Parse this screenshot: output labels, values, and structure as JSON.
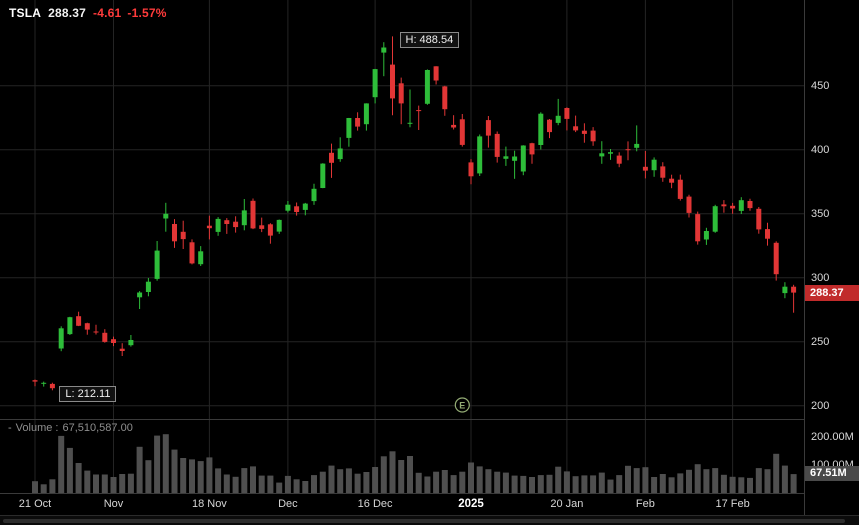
{
  "header": {
    "symbol": "TSLA",
    "price": "288.37",
    "change": "-4.61",
    "change_pct": "-1.57%"
  },
  "volume_header": {
    "toggle": "-",
    "label": "Volume :",
    "value": "67,510,587.00"
  },
  "badges": {
    "price": "288.37",
    "volume": "67.51M"
  },
  "annotations": {
    "high": "H: 488.54",
    "low": "L: 212.11",
    "earnings": "E"
  },
  "colors": {
    "up": "#2ebd3a",
    "down": "#e23636",
    "volume_bar": "#4f4f4f",
    "grid": "#242424",
    "badge_price": "#c12b2b",
    "badge_volume": "#4a4a4a",
    "earnings": "#93ab74",
    "change_text": "#ff3b3b"
  },
  "chart_data": {
    "type": "candlestick",
    "symbol": "TSLA",
    "ylim": [
      200,
      517
    ],
    "grid_prices": [
      450,
      400,
      350,
      300,
      250,
      200
    ],
    "volume_ticks": [
      {
        "label": "200.00M",
        "value": 200
      },
      {
        "label": "100.00M",
        "value": 100
      }
    ],
    "x_ticks": [
      {
        "label": "21 Oct",
        "index": 0
      },
      {
        "label": "Nov",
        "index": 9
      },
      {
        "label": "18 Nov",
        "index": 20
      },
      {
        "label": "Dec",
        "index": 29
      },
      {
        "label": "16 Dec",
        "index": 39
      },
      {
        "label": "2025",
        "index": 50,
        "emphasis": true
      },
      {
        "label": "20 Jan",
        "index": 61
      },
      {
        "label": "Feb",
        "index": 70
      },
      {
        "label": "17 Feb",
        "index": 80
      }
    ],
    "high_point": {
      "index": 41,
      "value": 488.54
    },
    "low_point": {
      "index": 2,
      "value": 212.11
    },
    "earnings_index": 49,
    "last_price": 288.37,
    "last_volume_m": 67.51,
    "candles": [
      [
        "21 Oct",
        220.0,
        220.5,
        215.3,
        218.9,
        42
      ],
      [
        "22 Oct",
        217.4,
        218.9,
        215.0,
        217.9,
        31
      ],
      [
        "23 Oct",
        217.1,
        218.0,
        212.11,
        213.7,
        49
      ],
      [
        "24 Oct",
        244.7,
        262.1,
        242.6,
        260.5,
        204
      ],
      [
        "25 Oct",
        256.0,
        269.5,
        255.3,
        269.2,
        161
      ],
      [
        "28 Oct",
        270.0,
        273.5,
        262.2,
        262.5,
        107
      ],
      [
        "29 Oct",
        264.5,
        264.9,
        255.5,
        259.5,
        80
      ],
      [
        "30 Oct",
        258.0,
        263.3,
        255.7,
        257.6,
        66
      ],
      [
        "31 Oct",
        257.0,
        259.8,
        249.3,
        249.9,
        66
      ],
      [
        "1 Nov",
        252.0,
        254.0,
        246.6,
        249.0,
        57
      ],
      [
        "4 Nov",
        244.6,
        248.9,
        238.9,
        242.8,
        68
      ],
      [
        "5 Nov",
        247.3,
        255.3,
        246.2,
        251.4,
        69
      ],
      [
        "6 Nov",
        284.7,
        289.6,
        275.6,
        288.5,
        165
      ],
      [
        "7 Nov",
        288.9,
        299.8,
        285.5,
        296.9,
        117
      ],
      [
        "8 Nov",
        299.1,
        328.7,
        297.7,
        321.2,
        205
      ],
      [
        "11 Nov",
        346.3,
        358.6,
        336.0,
        350.0,
        210
      ],
      [
        "12 Nov",
        342.0,
        345.8,
        323.3,
        328.5,
        155
      ],
      [
        "13 Nov",
        335.9,
        344.6,
        322.5,
        330.2,
        125
      ],
      [
        "14 Nov",
        327.7,
        330.0,
        310.4,
        311.2,
        120
      ],
      [
        "15 Nov",
        310.6,
        324.7,
        309.2,
        320.7,
        114
      ],
      [
        "18 Nov",
        340.7,
        348.5,
        330.0,
        338.7,
        127
      ],
      [
        "19 Nov",
        335.8,
        347.4,
        332.8,
        346.0,
        88
      ],
      [
        "20 Nov",
        345.0,
        346.6,
        334.3,
        342.0,
        66
      ],
      [
        "21 Nov",
        343.8,
        348.0,
        335.3,
        339.6,
        58
      ],
      [
        "22 Nov",
        341.1,
        361.5,
        337.1,
        352.6,
        89
      ],
      [
        "25 Nov",
        360.1,
        361.9,
        338.0,
        338.6,
        95
      ],
      [
        "26 Nov",
        341.0,
        347.0,
        335.7,
        338.2,
        62
      ],
      [
        "27 Nov",
        341.8,
        342.6,
        326.6,
        332.9,
        62
      ],
      [
        "29 Nov",
        336.1,
        345.5,
        334.3,
        345.2,
        37
      ],
      [
        "2 Dec",
        352.4,
        360.0,
        351.0,
        357.1,
        61
      ],
      [
        "3 Dec",
        355.8,
        358.8,
        348.6,
        351.4,
        49
      ],
      [
        "4 Dec",
        353.0,
        358.5,
        348.8,
        357.9,
        43
      ],
      [
        "5 Dec",
        359.9,
        373.4,
        356.9,
        369.5,
        64
      ],
      [
        "6 Dec",
        370.1,
        389.5,
        370.0,
        389.2,
        76
      ],
      [
        "9 Dec",
        397.6,
        404.8,
        378.0,
        389.8,
        98
      ],
      [
        "10 Dec",
        392.7,
        409.7,
        390.6,
        401.0,
        85
      ],
      [
        "11 Dec",
        409.3,
        424.9,
        402.4,
        424.8,
        88
      ],
      [
        "12 Dec",
        424.8,
        429.3,
        415.0,
        418.1,
        69
      ],
      [
        "13 Dec",
        420.0,
        436.3,
        415.0,
        436.2,
        75
      ],
      [
        "16 Dec",
        441.1,
        463.2,
        436.2,
        463.0,
        93
      ],
      [
        "17 Dec",
        475.9,
        484.0,
        457.5,
        479.9,
        131
      ],
      [
        "18 Dec",
        466.5,
        488.54,
        427.0,
        440.1,
        149
      ],
      [
        "19 Dec",
        451.9,
        456.4,
        420.0,
        436.2,
        118
      ],
      [
        "20 Dec",
        420.4,
        447.1,
        417.6,
        421.1,
        132
      ],
      [
        "23 Dec",
        431.0,
        434.5,
        415.4,
        430.6,
        72
      ],
      [
        "24 Dec",
        435.9,
        462.8,
        435.1,
        462.3,
        59
      ],
      [
        "26 Dec",
        465.2,
        465.3,
        451.0,
        454.1,
        76
      ],
      [
        "27 Dec",
        449.5,
        450.0,
        426.5,
        431.7,
        82
      ],
      [
        "30 Dec",
        419.4,
        427.0,
        415.8,
        417.4,
        64
      ],
      [
        "31 Dec",
        423.8,
        427.9,
        402.5,
        403.8,
        76
      ],
      [
        "2 Jan",
        390.1,
        392.7,
        373.0,
        379.3,
        109
      ],
      [
        "3 Jan",
        381.5,
        411.9,
        379.5,
        410.4,
        95
      ],
      [
        "6 Jan",
        423.2,
        426.4,
        401.7,
        411.1,
        85
      ],
      [
        "7 Jan",
        412.4,
        414.3,
        390.0,
        394.4,
        76
      ],
      [
        "8 Jan",
        392.9,
        402.5,
        387.4,
        394.9,
        73
      ],
      [
        "10 Jan",
        391.4,
        399.3,
        377.3,
        394.7,
        62
      ],
      [
        "13 Jan",
        383.0,
        403.6,
        380.1,
        403.3,
        61
      ],
      [
        "14 Jan",
        405.1,
        405.5,
        389.0,
        396.4,
        57
      ],
      [
        "15 Jan",
        403.7,
        429.3,
        400.2,
        428.2,
        64
      ],
      [
        "16 Jan",
        423.5,
        424.0,
        409.1,
        413.8,
        65
      ],
      [
        "17 Jan",
        421.0,
        439.7,
        419.2,
        426.5,
        94
      ],
      [
        "21 Jan",
        432.6,
        433.2,
        415.1,
        424.1,
        77
      ],
      [
        "22 Jan",
        418.3,
        426.7,
        413.8,
        415.1,
        60
      ],
      [
        "23 Jan",
        414.9,
        420.7,
        405.5,
        412.4,
        63
      ],
      [
        "24 Jan",
        415.0,
        417.7,
        403.1,
        406.6,
        63
      ],
      [
        "27 Jan",
        394.8,
        406.7,
        389.0,
        397.2,
        73
      ],
      [
        "28 Jan",
        396.9,
        400.6,
        392.1,
        398.1,
        48
      ],
      [
        "29 Jan",
        395.4,
        398.0,
        386.4,
        389.1,
        64
      ],
      [
        "30 Jan",
        400.4,
        406.5,
        391.8,
        400.3,
        97
      ],
      [
        "31 Jan",
        401.5,
        419.0,
        398.8,
        404.6,
        89
      ],
      [
        "3 Feb",
        386.7,
        399.0,
        377.6,
        383.7,
        92
      ],
      [
        "4 Feb",
        384.0,
        394.0,
        378.9,
        392.2,
        57
      ],
      [
        "5 Feb",
        387.0,
        390.3,
        375.0,
        378.2,
        68
      ],
      [
        "6 Feb",
        377.4,
        380.5,
        370.0,
        374.3,
        56
      ],
      [
        "7 Feb",
        376.6,
        380.6,
        360.3,
        361.6,
        70
      ],
      [
        "10 Feb",
        363.4,
        364.9,
        347.1,
        350.7,
        83
      ],
      [
        "11 Feb",
        349.7,
        351.7,
        325.9,
        328.5,
        103
      ],
      [
        "12 Feb",
        329.9,
        339.0,
        325.7,
        336.5,
        85
      ],
      [
        "13 Feb",
        336.0,
        357.0,
        335.1,
        355.9,
        89
      ],
      [
        "14 Feb",
        357.3,
        360.7,
        350.8,
        355.8,
        65
      ],
      [
        "18 Feb",
        356.2,
        358.5,
        350.0,
        354.1,
        58
      ],
      [
        "19 Feb",
        352.2,
        362.9,
        349.8,
        360.6,
        56
      ],
      [
        "20 Feb",
        360.0,
        361.8,
        352.4,
        354.4,
        54
      ],
      [
        "21 Feb",
        353.9,
        355.3,
        334.4,
        337.8,
        89
      ],
      [
        "24 Feb",
        338.0,
        342.9,
        325.1,
        330.5,
        85
      ],
      [
        "25 Feb",
        327.3,
        328.5,
        297.8,
        302.8,
        140
      ],
      [
        "26 Feb",
        288.0,
        296.5,
        284.0,
        292.98,
        98
      ],
      [
        "27 Feb",
        293.0,
        294.5,
        272.7,
        288.37,
        67.51
      ]
    ]
  }
}
